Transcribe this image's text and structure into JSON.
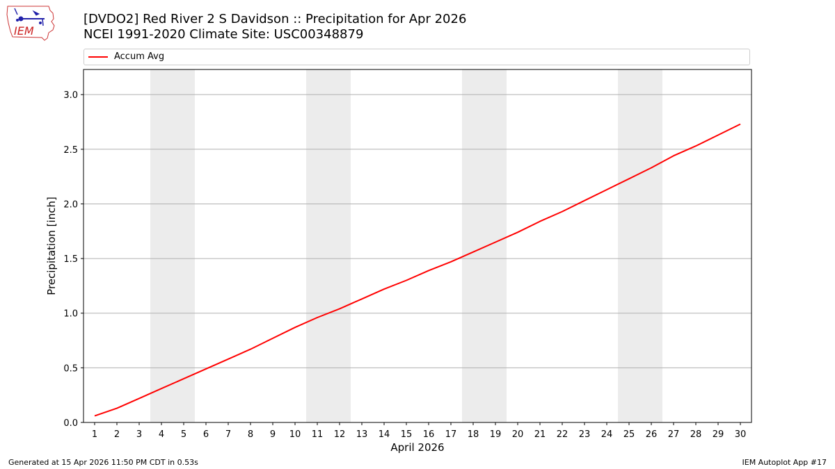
{
  "logo": {
    "text": "IEM"
  },
  "title_line1": "[DVDO2] Red River 2 S Davidson :: Precipitation for Apr 2026",
  "title_line2": "NCEI 1991-2020 Climate Site: USC00348879",
  "footer": {
    "left": "Generated at 15 Apr 2026 11:50 PM CDT in 0.53s",
    "right": "IEM Autoplot App #17"
  },
  "chart_data": {
    "type": "line",
    "xlabel": "April 2026",
    "ylabel": "Precipitation [inch]",
    "xlim": [
      0.5,
      30.5
    ],
    "ylim": [
      0,
      3.23
    ],
    "yticks": [
      0.0,
      0.5,
      1.0,
      1.5,
      2.0,
      2.5,
      3.0
    ],
    "ytick_labels": [
      "0.0",
      "0.5",
      "1.0",
      "1.5",
      "2.0",
      "2.5",
      "3.0"
    ],
    "grid": "horizontal",
    "legend_position": "top",
    "weekend_shading": [
      [
        3.5,
        5.5
      ],
      [
        10.5,
        12.5
      ],
      [
        17.5,
        19.5
      ],
      [
        24.5,
        26.5
      ]
    ],
    "shade_color": "#ececec",
    "x": [
      1,
      2,
      3,
      4,
      5,
      6,
      7,
      8,
      9,
      10,
      11,
      12,
      13,
      14,
      15,
      16,
      17,
      18,
      19,
      20,
      21,
      22,
      23,
      24,
      25,
      26,
      27,
      28,
      29,
      30
    ],
    "series": [
      {
        "name": "Accum Avg",
        "color": "#ff0000",
        "values": [
          0.06,
          0.13,
          0.22,
          0.31,
          0.4,
          0.49,
          0.58,
          0.67,
          0.77,
          0.87,
          0.96,
          1.04,
          1.13,
          1.22,
          1.3,
          1.39,
          1.47,
          1.56,
          1.65,
          1.74,
          1.84,
          1.93,
          2.03,
          2.13,
          2.23,
          2.33,
          2.44,
          2.53,
          2.63,
          2.73
        ]
      }
    ]
  }
}
